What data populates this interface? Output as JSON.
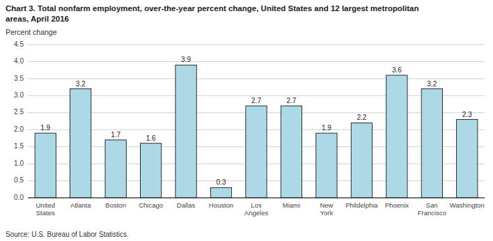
{
  "chart_data": {
    "type": "bar",
    "title": "Chart 3. Total nonfarm employment, over-the-year percent change, United States and 12 largest metropolitan\nareas, April 2016",
    "ylabel": "Percent change",
    "source": "Source: U.S. Bureau of Labor Statistics.",
    "categories": [
      "United\nStates",
      "Atlanta",
      "Boston",
      "Chicago",
      "Dallas",
      "Houston",
      "Los\nAngeles",
      "Miami",
      "New\nYork",
      "Phildelphia",
      "Phoenix",
      "San\nFrancisco",
      "Washington"
    ],
    "values": [
      1.9,
      3.2,
      1.7,
      1.6,
      3.9,
      0.3,
      2.7,
      2.7,
      1.9,
      2.2,
      3.6,
      3.2,
      2.3
    ],
    "color": "#add8e6",
    "ylim": [
      0,
      4.5
    ],
    "yticks": [
      {
        "value": 0.0,
        "label": "0.0"
      },
      0.5,
      {
        "value": 1.0,
        "label": "1.0"
      },
      1.5,
      {
        "value": 2.0,
        "label": "2.0"
      },
      2.5,
      {
        "value": 3.0,
        "label": "3.0"
      },
      3.5,
      {
        "value": 4.0,
        "label": "4.0"
      },
      4.5
    ],
    "grid": true,
    "data_labels": true
  }
}
